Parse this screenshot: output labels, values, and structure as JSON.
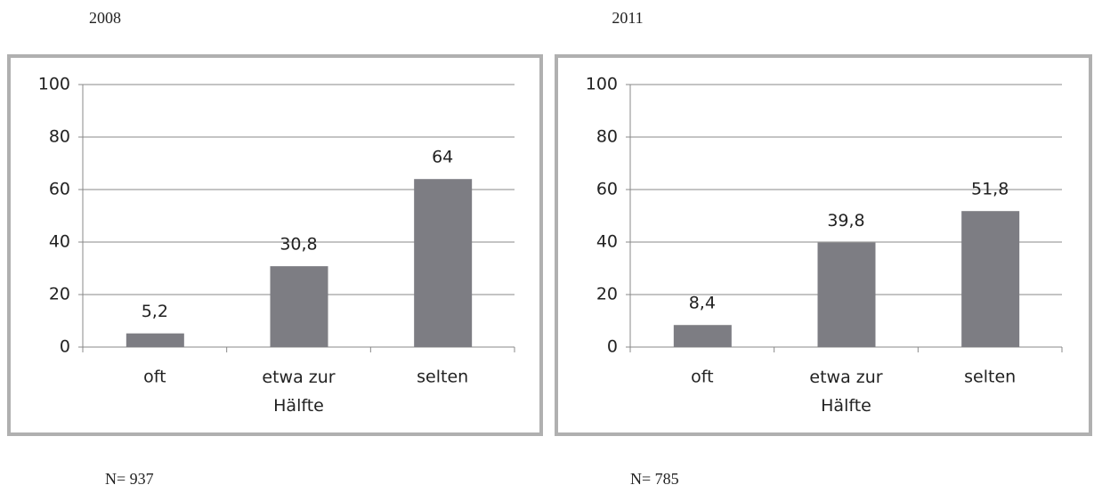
{
  "chart_data": [
    {
      "type": "bar",
      "title": "2008",
      "categories": [
        "oft",
        "etwa zur Hälfte",
        "selten"
      ],
      "values": [
        5.2,
        30.8,
        64
      ],
      "value_labels": [
        "5,2",
        "30,8",
        "64"
      ],
      "color": "#7d7d83",
      "ylim": [
        0,
        100
      ],
      "yticks": [
        0,
        20,
        40,
        60,
        80,
        100
      ],
      "grid": true,
      "note": "N= 937"
    },
    {
      "type": "bar",
      "title": "2011",
      "categories": [
        "oft",
        "etwa zur Hälfte",
        "selten"
      ],
      "values": [
        8.4,
        39.8,
        51.8
      ],
      "value_labels": [
        "8,4",
        "39,8",
        "51,8"
      ],
      "color": "#7d7d83",
      "ylim": [
        0,
        100
      ],
      "yticks": [
        0,
        20,
        40,
        60,
        80,
        100
      ],
      "grid": true,
      "note": "N= 785"
    }
  ]
}
